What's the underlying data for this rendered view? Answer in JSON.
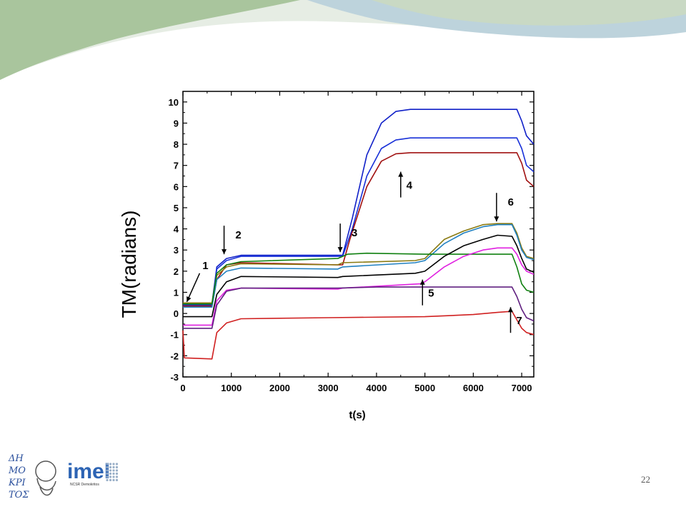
{
  "slide": {
    "page_number": "22",
    "banner_colors": [
      "#c9d9c4",
      "#a9c59d",
      "#bdd3dc",
      "#e6ede4"
    ]
  },
  "logos": {
    "left": {
      "name": "democritus-logo",
      "glyphs": [
        "ΔΗ",
        "ΜΟ",
        "ΚΡΙ",
        "ΤΟΣ"
      ],
      "color": "#2a4f9c"
    },
    "right": {
      "name": "imel-logo",
      "text": "imel",
      "subtext": "NCSR Demokritos",
      "color": "#2d64b4"
    }
  },
  "chart_data": {
    "type": "line",
    "xlabel": "t(s)",
    "ylabel": "TM(radians)",
    "xlim": [
      0,
      7250
    ],
    "ylim": [
      -3,
      10.5
    ],
    "xticks": [
      0,
      1000,
      2000,
      3000,
      4000,
      5000,
      6000,
      7000
    ],
    "yticks": [
      -3,
      -2,
      -1,
      0,
      1,
      2,
      3,
      4,
      5,
      6,
      7,
      8,
      9,
      10
    ],
    "grid": false,
    "series": [
      {
        "color": "#1020c8",
        "points": [
          [
            0,
            0.45
          ],
          [
            600,
            0.45
          ],
          [
            700,
            2.2
          ],
          [
            900,
            2.6
          ],
          [
            1200,
            2.75
          ],
          [
            3300,
            2.75
          ],
          [
            3500,
            4.5
          ],
          [
            3800,
            7.5
          ],
          [
            4100,
            9.0
          ],
          [
            4400,
            9.55
          ],
          [
            4700,
            9.65
          ],
          [
            6900,
            9.65
          ],
          [
            7000,
            9.1
          ],
          [
            7100,
            8.4
          ],
          [
            7250,
            8.0
          ]
        ]
      },
      {
        "color": "#1830d8",
        "points": [
          [
            0,
            0.4
          ],
          [
            600,
            0.4
          ],
          [
            700,
            2.1
          ],
          [
            900,
            2.5
          ],
          [
            1200,
            2.7
          ],
          [
            3300,
            2.7
          ],
          [
            3500,
            4.0
          ],
          [
            3800,
            6.5
          ],
          [
            4100,
            7.8
          ],
          [
            4400,
            8.2
          ],
          [
            4700,
            8.3
          ],
          [
            6900,
            8.3
          ],
          [
            7000,
            7.8
          ],
          [
            7100,
            7.0
          ],
          [
            7250,
            6.7
          ]
        ]
      },
      {
        "color": "#a01010",
        "points": [
          [
            0,
            0.35
          ],
          [
            600,
            0.35
          ],
          [
            700,
            1.6
          ],
          [
            900,
            2.3
          ],
          [
            1200,
            2.4
          ],
          [
            3200,
            2.3
          ],
          [
            3300,
            2.3
          ],
          [
            3450,
            3.5
          ],
          [
            3800,
            6.0
          ],
          [
            4100,
            7.2
          ],
          [
            4400,
            7.55
          ],
          [
            4700,
            7.6
          ],
          [
            6900,
            7.6
          ],
          [
            7000,
            7.1
          ],
          [
            7100,
            6.3
          ],
          [
            7250,
            6.0
          ]
        ]
      },
      {
        "color": "#8a7a10",
        "points": [
          [
            0,
            0.5
          ],
          [
            600,
            0.5
          ],
          [
            700,
            1.8
          ],
          [
            900,
            2.2
          ],
          [
            1200,
            2.35
          ],
          [
            3200,
            2.3
          ],
          [
            3300,
            2.4
          ],
          [
            4800,
            2.5
          ],
          [
            5000,
            2.6
          ],
          [
            5400,
            3.5
          ],
          [
            5800,
            3.9
          ],
          [
            6200,
            4.2
          ],
          [
            6500,
            4.25
          ],
          [
            6800,
            4.25
          ],
          [
            6900,
            3.8
          ],
          [
            7000,
            3.1
          ],
          [
            7100,
            2.7
          ],
          [
            7250,
            2.6
          ]
        ]
      },
      {
        "color": "#2080c0",
        "points": [
          [
            0,
            0.3
          ],
          [
            600,
            0.3
          ],
          [
            700,
            1.6
          ],
          [
            900,
            2.0
          ],
          [
            1200,
            2.15
          ],
          [
            3200,
            2.1
          ],
          [
            3300,
            2.2
          ],
          [
            4800,
            2.4
          ],
          [
            5000,
            2.5
          ],
          [
            5400,
            3.3
          ],
          [
            5800,
            3.8
          ],
          [
            6200,
            4.1
          ],
          [
            6500,
            4.2
          ],
          [
            6800,
            4.2
          ],
          [
            6900,
            3.7
          ],
          [
            7000,
            3.0
          ],
          [
            7100,
            2.65
          ],
          [
            7250,
            2.55
          ]
        ]
      },
      {
        "color": "#108010",
        "points": [
          [
            0,
            0.45
          ],
          [
            600,
            0.45
          ],
          [
            700,
            1.9
          ],
          [
            900,
            2.3
          ],
          [
            1200,
            2.45
          ],
          [
            3200,
            2.6
          ],
          [
            3400,
            2.8
          ],
          [
            3800,
            2.85
          ],
          [
            5000,
            2.8
          ],
          [
            6800,
            2.8
          ],
          [
            6900,
            2.2
          ],
          [
            7000,
            1.4
          ],
          [
            7100,
            1.1
          ],
          [
            7250,
            1.0
          ]
        ]
      },
      {
        "color": "#000000",
        "points": [
          [
            0,
            -0.15
          ],
          [
            600,
            -0.15
          ],
          [
            700,
            0.9
          ],
          [
            900,
            1.5
          ],
          [
            1200,
            1.75
          ],
          [
            3200,
            1.7
          ],
          [
            3300,
            1.75
          ],
          [
            4800,
            1.9
          ],
          [
            5000,
            2.0
          ],
          [
            5400,
            2.7
          ],
          [
            5800,
            3.2
          ],
          [
            6200,
            3.5
          ],
          [
            6500,
            3.7
          ],
          [
            6800,
            3.65
          ],
          [
            6900,
            3.2
          ],
          [
            7000,
            2.6
          ],
          [
            7100,
            2.1
          ],
          [
            7250,
            1.95
          ]
        ]
      },
      {
        "color": "#e020e0",
        "points": [
          [
            0,
            -0.55
          ],
          [
            600,
            -0.55
          ],
          [
            700,
            0.6
          ],
          [
            900,
            1.1
          ],
          [
            1200,
            1.2
          ],
          [
            3200,
            1.15
          ],
          [
            3300,
            1.2
          ],
          [
            4900,
            1.4
          ],
          [
            5000,
            1.5
          ],
          [
            5400,
            2.2
          ],
          [
            5800,
            2.7
          ],
          [
            6200,
            3.0
          ],
          [
            6500,
            3.1
          ],
          [
            6800,
            3.1
          ],
          [
            6900,
            2.8
          ],
          [
            7000,
            2.3
          ],
          [
            7100,
            2.0
          ],
          [
            7250,
            1.85
          ]
        ]
      },
      {
        "color": "#602080",
        "points": [
          [
            0,
            -0.7
          ],
          [
            600,
            -0.7
          ],
          [
            700,
            0.4
          ],
          [
            900,
            1.05
          ],
          [
            1200,
            1.2
          ],
          [
            3200,
            1.2
          ],
          [
            4000,
            1.25
          ],
          [
            5000,
            1.25
          ],
          [
            6000,
            1.25
          ],
          [
            6800,
            1.25
          ],
          [
            6900,
            0.8
          ],
          [
            7000,
            0.2
          ],
          [
            7100,
            -0.2
          ],
          [
            7250,
            -0.35
          ]
        ]
      },
      {
        "color": "#d02020",
        "points": [
          [
            0,
            -0.8
          ],
          [
            30,
            -2.1
          ],
          [
            600,
            -2.15
          ],
          [
            700,
            -0.9
          ],
          [
            900,
            -0.45
          ],
          [
            1200,
            -0.25
          ],
          [
            3000,
            -0.2
          ],
          [
            5000,
            -0.15
          ],
          [
            6000,
            -0.05
          ],
          [
            6500,
            0.05
          ],
          [
            6800,
            0.1
          ],
          [
            6900,
            -0.3
          ],
          [
            7000,
            -0.7
          ],
          [
            7100,
            -0.9
          ],
          [
            7250,
            -1.0
          ]
        ]
      }
    ],
    "annotations": [
      {
        "label": "1",
        "direction": "down-left",
        "x": 80,
        "y": 0.55
      },
      {
        "label": "2",
        "direction": "down",
        "x": 850,
        "y": 2.8
      },
      {
        "label": "3",
        "direction": "down",
        "x": 3250,
        "y": 2.9
      },
      {
        "label": "4",
        "direction": "up",
        "x": 4500,
        "y": 6.7
      },
      {
        "label": "5",
        "direction": "up",
        "x": 4950,
        "y": 1.6
      },
      {
        "label": "6",
        "direction": "down",
        "x": 6480,
        "y": 4.35
      },
      {
        "label": "7",
        "direction": "up",
        "x": 6770,
        "y": 0.3
      }
    ]
  }
}
